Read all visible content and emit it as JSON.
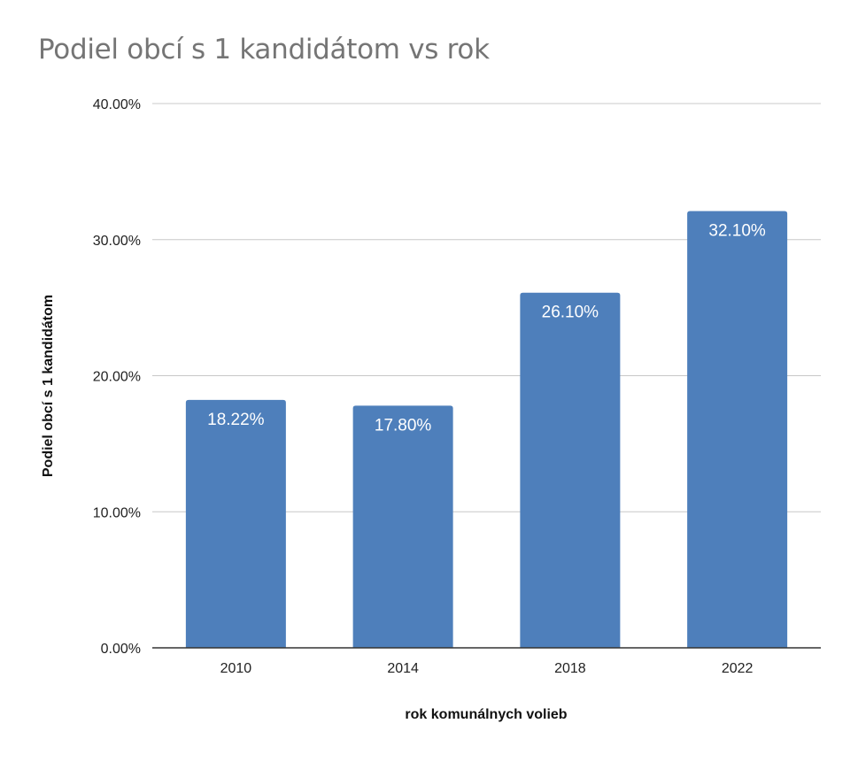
{
  "chart_data": {
    "type": "bar",
    "title": "Podiel obcí s 1 kandidátom vs rok",
    "xlabel": "rok komunálnych volieb",
    "ylabel": "Podiel obcí s 1 kandidátom",
    "categories": [
      "2010",
      "2014",
      "2018",
      "2022"
    ],
    "values": [
      18.22,
      17.8,
      26.1,
      32.1
    ],
    "data_labels": [
      "18.22%",
      "17.80%",
      "26.10%",
      "32.10%"
    ],
    "yticks": [
      0,
      10,
      20,
      30,
      40
    ],
    "ytick_labels": [
      "0.00%",
      "10.00%",
      "20.00%",
      "30.00%",
      "40.00%"
    ],
    "ylim": [
      0,
      40
    ],
    "grid": true,
    "legend": "none",
    "bar_color": "#4e7fbb",
    "grid_color": "#c8c8c8",
    "axis_color": "#333333"
  }
}
